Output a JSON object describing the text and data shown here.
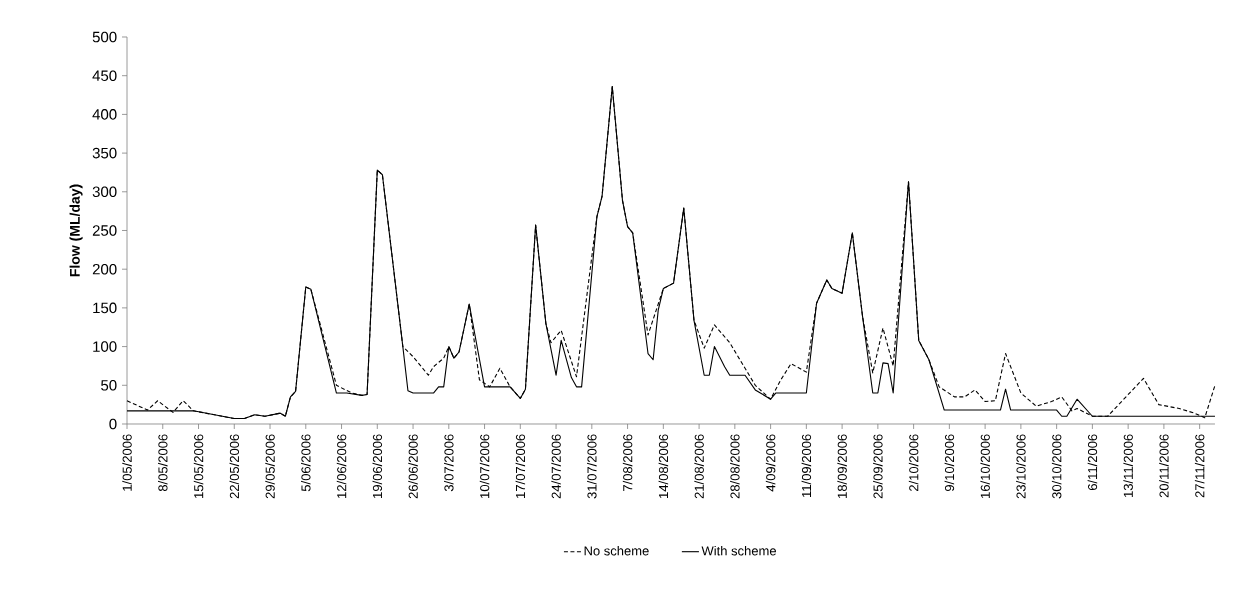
{
  "chart_data": {
    "type": "line",
    "ylabel": "Flow (ML/day)",
    "xlim": [
      "2006-05-01",
      "2006-11-30"
    ],
    "ylim": [
      0,
      500
    ],
    "yticks": [
      0,
      50,
      100,
      150,
      200,
      250,
      300,
      350,
      400,
      450,
      500
    ],
    "xticks": [
      {
        "value": "2006-05-01",
        "label": "1/05/2006"
      },
      {
        "value": "2006-05-08",
        "label": "8/05/2006"
      },
      {
        "value": "2006-05-15",
        "label": "15/05/2006"
      },
      {
        "value": "2006-05-22",
        "label": "22/05/2006"
      },
      {
        "value": "2006-05-29",
        "label": "29/05/2006"
      },
      {
        "value": "2006-06-05",
        "label": "5/06/2006"
      },
      {
        "value": "2006-06-12",
        "label": "12/06/2006"
      },
      {
        "value": "2006-06-19",
        "label": "19/06/2006"
      },
      {
        "value": "2006-06-26",
        "label": "26/06/2006"
      },
      {
        "value": "2006-07-03",
        "label": "3/07/2006"
      },
      {
        "value": "2006-07-10",
        "label": "10/07/2006"
      },
      {
        "value": "2006-07-17",
        "label": "17/07/2006"
      },
      {
        "value": "2006-07-24",
        "label": "24/07/2006"
      },
      {
        "value": "2006-07-31",
        "label": "31/07/2006"
      },
      {
        "value": "2006-08-07",
        "label": "7/08/2006"
      },
      {
        "value": "2006-08-14",
        "label": "14/08/2006"
      },
      {
        "value": "2006-08-21",
        "label": "21/08/2006"
      },
      {
        "value": "2006-08-28",
        "label": "28/08/2006"
      },
      {
        "value": "2006-09-04",
        "label": "4/09/2006"
      },
      {
        "value": "2006-09-11",
        "label": "11/09/2006"
      },
      {
        "value": "2006-09-18",
        "label": "18/09/2006"
      },
      {
        "value": "2006-09-25",
        "label": "25/09/2006"
      },
      {
        "value": "2006-10-02",
        "label": "2/10/2006"
      },
      {
        "value": "2006-10-09",
        "label": "9/10/2006"
      },
      {
        "value": "2006-10-16",
        "label": "16/10/2006"
      },
      {
        "value": "2006-10-23",
        "label": "23/10/2006"
      },
      {
        "value": "2006-10-30",
        "label": "30/10/2006"
      },
      {
        "value": "2006-11-06",
        "label": "6/11/2006"
      },
      {
        "value": "2006-11-13",
        "label": "13/11/2006"
      },
      {
        "value": "2006-11-20",
        "label": "20/11/2006"
      },
      {
        "value": "2006-11-27",
        "label": "27/11/2006"
      }
    ],
    "legend": "bottom",
    "series": [
      {
        "name": "No scheme",
        "color": "#000000",
        "line_style": "dashed",
        "x": [
          "2006-05-01",
          "2006-05-05",
          "2006-05-07",
          "2006-05-10",
          "2006-05-12",
          "2006-05-14",
          "2006-05-22",
          "2006-05-24",
          "2006-05-26",
          "2006-05-28",
          "2006-05-31",
          "2006-06-01",
          "2006-06-02",
          "2006-06-03",
          "2006-06-05",
          "2006-06-06",
          "2006-06-11",
          "2006-06-14",
          "2006-06-16",
          "2006-06-17",
          "2006-06-19",
          "2006-06-20",
          "2006-06-24",
          "2006-06-26",
          "2006-06-29",
          "2006-06-30",
          "2006-07-02",
          "2006-07-03",
          "2006-07-04",
          "2006-07-05",
          "2006-07-07",
          "2006-07-09",
          "2006-07-11",
          "2006-07-13",
          "2006-07-15",
          "2006-07-17",
          "2006-07-18",
          "2006-07-20",
          "2006-07-22",
          "2006-07-23",
          "2006-07-25",
          "2006-07-28",
          "2006-08-01",
          "2006-08-02",
          "2006-08-04",
          "2006-08-06",
          "2006-08-07",
          "2006-08-08",
          "2006-08-11",
          "2006-08-14",
          "2006-08-16",
          "2006-08-18",
          "2006-08-20",
          "2006-08-22",
          "2006-08-24",
          "2006-08-27",
          "2006-08-30",
          "2006-09-01",
          "2006-09-04",
          "2006-09-06",
          "2006-09-08",
          "2006-09-11",
          "2006-09-13",
          "2006-09-15",
          "2006-09-16",
          "2006-09-18",
          "2006-09-20",
          "2006-09-22",
          "2006-09-24",
          "2006-09-26",
          "2006-09-28",
          "2006-10-01",
          "2006-10-03",
          "2006-10-05",
          "2006-10-07",
          "2006-10-10",
          "2006-10-12",
          "2006-10-14",
          "2006-10-16",
          "2006-10-18",
          "2006-10-20",
          "2006-10-23",
          "2006-10-26",
          "2006-10-29",
          "2006-10-31",
          "2006-11-02",
          "2006-11-03",
          "2006-11-06",
          "2006-11-09",
          "2006-11-16",
          "2006-11-19",
          "2006-11-23",
          "2006-11-26",
          "2006-11-28",
          "2006-11-30"
        ],
        "values": [
          30,
          18,
          30,
          15,
          30,
          17,
          7,
          7,
          12,
          10,
          14,
          10,
          35,
          42,
          177,
          174,
          50,
          40,
          37,
          38,
          328,
          322,
          100,
          87,
          63,
          74,
          85,
          100,
          85,
          93,
          155,
          57,
          48,
          72,
          48,
          33,
          45,
          257,
          130,
          105,
          121,
          61,
          268,
          294,
          436,
          289,
          255,
          247,
          115,
          175,
          182,
          279,
          134,
          98,
          128,
          105,
          72,
          50,
          32,
          57,
          78,
          67,
          156,
          186,
          175,
          169,
          247,
          139,
          66,
          124,
          75,
          313,
          108,
          83,
          48,
          35,
          35,
          44,
          29,
          30,
          91,
          40,
          23,
          29,
          35,
          17,
          20,
          10,
          10,
          59,
          25,
          20,
          14,
          8,
          50
        ]
      },
      {
        "name": "With scheme",
        "color": "#000000",
        "line_style": "solid",
        "x": [
          "2006-05-01",
          "2006-05-14",
          "2006-05-22",
          "2006-05-24",
          "2006-05-26",
          "2006-05-28",
          "2006-05-31",
          "2006-06-01",
          "2006-06-02",
          "2006-06-03",
          "2006-06-05",
          "2006-06-06",
          "2006-06-11",
          "2006-06-13",
          "2006-06-16",
          "2006-06-17",
          "2006-06-19",
          "2006-06-20",
          "2006-06-24",
          "2006-06-25",
          "2006-06-26",
          "2006-06-30",
          "2006-07-01",
          "2006-07-02",
          "2006-07-03",
          "2006-07-04",
          "2006-07-05",
          "2006-07-07",
          "2006-07-10",
          "2006-07-15",
          "2006-07-17",
          "2006-07-18",
          "2006-07-20",
          "2006-07-22",
          "2006-07-24",
          "2006-07-25",
          "2006-07-27",
          "2006-07-28",
          "2006-07-29",
          "2006-08-01",
          "2006-08-02",
          "2006-08-04",
          "2006-08-06",
          "2006-08-07",
          "2006-08-08",
          "2006-08-11",
          "2006-08-12",
          "2006-08-13",
          "2006-08-14",
          "2006-08-16",
          "2006-08-18",
          "2006-08-20",
          "2006-08-22",
          "2006-08-23",
          "2006-08-24",
          "2006-08-26",
          "2006-08-27",
          "2006-08-30",
          "2006-09-01",
          "2006-09-02",
          "2006-09-04",
          "2006-09-05",
          "2006-09-11",
          "2006-09-13",
          "2006-09-15",
          "2006-09-16",
          "2006-09-18",
          "2006-09-20",
          "2006-09-22",
          "2006-09-24",
          "2006-09-25",
          "2006-09-26",
          "2006-09-27",
          "2006-09-28",
          "2006-10-01",
          "2006-10-03",
          "2006-10-05",
          "2006-10-08",
          "2006-10-19",
          "2006-10-20",
          "2006-10-21",
          "2006-10-30",
          "2006-10-31",
          "2006-11-01",
          "2006-11-03",
          "2006-11-06",
          "2006-11-30"
        ],
        "values": [
          17,
          17,
          7,
          7,
          12,
          10,
          14,
          10,
          35,
          42,
          177,
          174,
          40,
          40,
          37,
          38,
          328,
          322,
          100,
          43,
          40,
          40,
          48,
          48,
          100,
          85,
          93,
          155,
          48,
          48,
          33,
          45,
          257,
          130,
          63,
          108,
          60,
          48,
          48,
          268,
          294,
          436,
          289,
          255,
          247,
          91,
          83,
          147,
          175,
          182,
          279,
          134,
          63,
          63,
          100,
          74,
          63,
          63,
          44,
          40,
          32,
          40,
          40,
          156,
          186,
          175,
          169,
          247,
          139,
          40,
          40,
          79,
          78,
          40,
          313,
          108,
          83,
          18,
          18,
          45,
          18,
          18,
          10,
          10,
          32,
          10,
          10
        ]
      }
    ]
  }
}
